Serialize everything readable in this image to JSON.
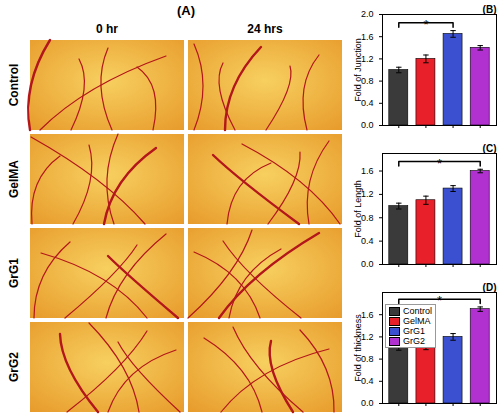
{
  "panel_a": {
    "label": "(A)",
    "columns": [
      "0 hr",
      "24 hrs"
    ],
    "rows": [
      "Control",
      "GelMA",
      "GrG1",
      "GrG2"
    ]
  },
  "chart_data": [
    {
      "type": "bar",
      "title": "(B)",
      "y_label": "Fold of Junction",
      "categories": [
        "Control",
        "GelMA",
        "GrG1",
        "GrG2"
      ],
      "values": [
        1.0,
        1.2,
        1.65,
        1.4
      ],
      "errors": [
        0.05,
        0.07,
        0.06,
        0.04
      ],
      "colors": [
        "#3a3a3a",
        "#e8202a",
        "#3a50d0",
        "#b030d0"
      ],
      "ylim": [
        0,
        2.0
      ],
      "yticks": [
        {
          "value": 0,
          "label": "0.0"
        },
        {
          "value": 0.4,
          "label": "0.4"
        },
        {
          "value": 0.8,
          "label": "0.8"
        },
        {
          "value": 1.2,
          "label": "1.2"
        },
        {
          "value": 1.6,
          "label": "1.6"
        },
        {
          "value": 2.0,
          "label": "2.0"
        }
      ],
      "tick_labels": "y",
      "annotations": [
        {
          "text": "*",
          "from": "Control",
          "to": "GrG1"
        }
      ]
    },
    {
      "type": "bar",
      "title": "(C)",
      "y_label": "Fold of Length",
      "categories": [
        "Control",
        "GelMA",
        "GrG1",
        "GrG2"
      ],
      "values": [
        1.0,
        1.1,
        1.3,
        1.6
      ],
      "errors": [
        0.05,
        0.07,
        0.05,
        0.03
      ],
      "colors": [
        "#3a3a3a",
        "#e8202a",
        "#3a50d0",
        "#b030d0"
      ],
      "ylim": [
        0,
        1.9
      ],
      "yticks": [
        {
          "value": 0,
          "label": "0.0"
        },
        {
          "value": 0.4,
          "label": "0.4"
        },
        {
          "value": 0.8,
          "label": "0.8"
        },
        {
          "value": 1.2,
          "label": "1.2"
        },
        {
          "value": 1.6,
          "label": "1.6"
        }
      ],
      "tick_labels": "y",
      "annotations": [
        {
          "text": "*",
          "from": "Control",
          "to": "GrG2"
        }
      ]
    },
    {
      "type": "bar",
      "title": "(D)",
      "y_label": "Fold of thickness",
      "categories": [
        "Control",
        "GelMA",
        "GrG1",
        "GrG2"
      ],
      "values": [
        1.0,
        1.02,
        1.2,
        1.7
      ],
      "errors": [
        0.04,
        0.05,
        0.06,
        0.04
      ],
      "colors": [
        "#3a3a3a",
        "#e8202a",
        "#3a50d0",
        "#b030d0"
      ],
      "ylim": [
        0,
        2.0
      ],
      "yticks": [
        {
          "value": 0,
          "label": "0.0"
        },
        {
          "value": 0.4,
          "label": "0.4"
        },
        {
          "value": 0.8,
          "label": "0.8"
        },
        {
          "value": 1.2,
          "label": "1.2"
        },
        {
          "value": 1.6,
          "label": "1.6"
        }
      ],
      "tick_labels": "y",
      "legend": "upper left",
      "annotations": [
        {
          "text": "*",
          "from": "Control",
          "to": "GrG2"
        }
      ]
    }
  ]
}
